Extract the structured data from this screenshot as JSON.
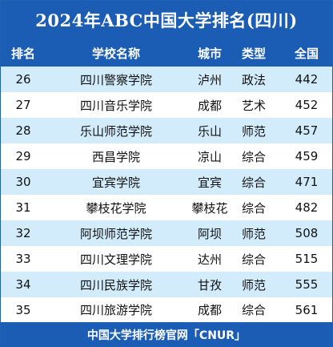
{
  "title": "2024年ABC中国大学排名(四川)",
  "columns": {
    "rank": "排名",
    "name": "学校名称",
    "city": "城市",
    "type": "类型",
    "score": "全国"
  },
  "rows": [
    {
      "rank": "26",
      "name": "四川警察学院",
      "city": "泸州",
      "type": "政法",
      "score": "442"
    },
    {
      "rank": "27",
      "name": "四川音乐学院",
      "city": "成都",
      "type": "艺术",
      "score": "452"
    },
    {
      "rank": "28",
      "name": "乐山师范学院",
      "city": "乐山",
      "type": "师范",
      "score": "457"
    },
    {
      "rank": "29",
      "name": "西昌学院",
      "city": "凉山",
      "type": "综合",
      "score": "459"
    },
    {
      "rank": "30",
      "name": "宜宾学院",
      "city": "宜宾",
      "type": "综合",
      "score": "471"
    },
    {
      "rank": "31",
      "name": "攀枝花学院",
      "city": "攀枝花",
      "type": "综合",
      "score": "482"
    },
    {
      "rank": "32",
      "name": "阿坝师范学院",
      "city": "阿坝",
      "type": "师范",
      "score": "508"
    },
    {
      "rank": "33",
      "name": "四川文理学院",
      "city": "达州",
      "type": "综合",
      "score": "515"
    },
    {
      "rank": "34",
      "name": "四川民族学院",
      "city": "甘孜",
      "type": "师范",
      "score": "555"
    },
    {
      "rank": "35",
      "name": "四川旅游学院",
      "city": "成都",
      "type": "综合",
      "score": "561"
    }
  ],
  "footer": "中国大学排行榜官网「CNUR」",
  "colors": {
    "header_bg": "#1b5cb5",
    "row_alt_bg": "#d2ecfb",
    "text": "#111111"
  }
}
